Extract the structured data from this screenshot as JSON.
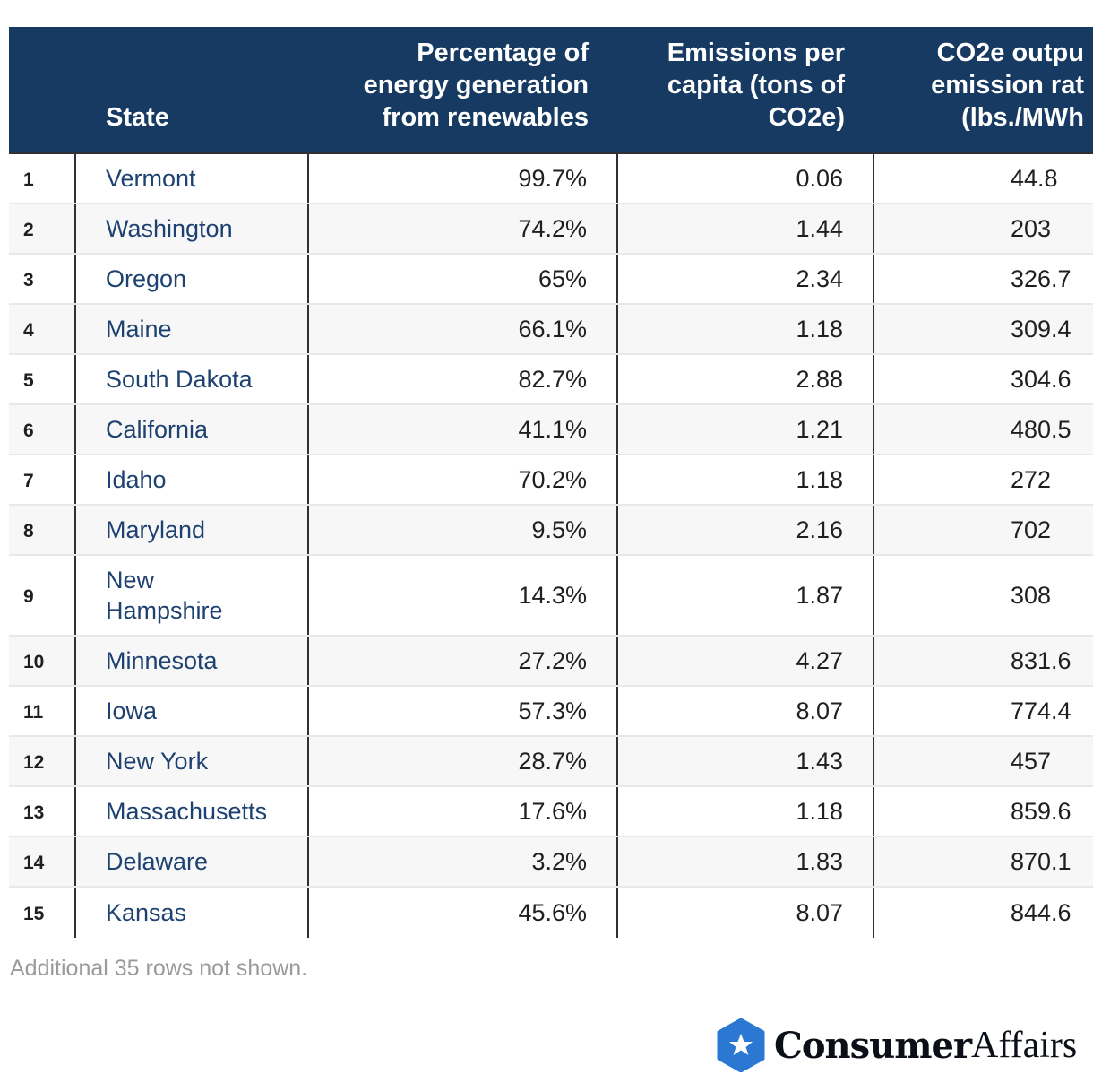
{
  "header": {
    "rank": "",
    "state": "State",
    "pct": [
      "Percentage of",
      "energy generation",
      "from renewables"
    ],
    "emissions": [
      "Emissions per",
      "capita (tons of",
      "CO2e)"
    ],
    "co2e": [
      "CO2e outpu",
      "emission rat",
      "(lbs./MWh"
    ]
  },
  "rows": [
    {
      "rank": "1",
      "state": "Vermont",
      "pct": "99.7%",
      "emissions": "0.06",
      "co2e": "44.8"
    },
    {
      "rank": "2",
      "state": "Washington",
      "pct": "74.2%",
      "emissions": "1.44",
      "co2e": "203"
    },
    {
      "rank": "3",
      "state": "Oregon",
      "pct": "65%",
      "emissions": "2.34",
      "co2e": "326.7"
    },
    {
      "rank": "4",
      "state": "Maine",
      "pct": "66.1%",
      "emissions": "1.18",
      "co2e": "309.4"
    },
    {
      "rank": "5",
      "state": "South Dakota",
      "pct": "82.7%",
      "emissions": "2.88",
      "co2e": "304.6"
    },
    {
      "rank": "6",
      "state": "California",
      "pct": "41.1%",
      "emissions": "1.21",
      "co2e": "480.5"
    },
    {
      "rank": "7",
      "state": "Idaho",
      "pct": "70.2%",
      "emissions": "1.18",
      "co2e": "272"
    },
    {
      "rank": "8",
      "state": "Maryland",
      "pct": "9.5%",
      "emissions": "2.16",
      "co2e": "702"
    },
    {
      "rank": "9",
      "state": "New Hampshire",
      "pct": "14.3%",
      "emissions": "1.87",
      "co2e": "308"
    },
    {
      "rank": "10",
      "state": "Minnesota",
      "pct": "27.2%",
      "emissions": "4.27",
      "co2e": "831.6"
    },
    {
      "rank": "11",
      "state": "Iowa",
      "pct": "57.3%",
      "emissions": "8.07",
      "co2e": "774.4"
    },
    {
      "rank": "12",
      "state": "New York",
      "pct": "28.7%",
      "emissions": "1.43",
      "co2e": "457"
    },
    {
      "rank": "13",
      "state": "Massachusetts",
      "pct": "17.6%",
      "emissions": "1.18",
      "co2e": "859.6"
    },
    {
      "rank": "14",
      "state": "Delaware",
      "pct": "3.2%",
      "emissions": "1.83",
      "co2e": "870.1"
    },
    {
      "rank": "15",
      "state": "Kansas",
      "pct": "45.6%",
      "emissions": "8.07",
      "co2e": "844.6"
    }
  ],
  "note": "Additional 35 rows not shown.",
  "logo": {
    "text_bold": "Consumer",
    "text_light": "Affairs",
    "icon": "star-hexagon-icon",
    "color": "#2a78d2"
  },
  "colors": {
    "header_bg": "#173a63",
    "state_text": "#1d4170",
    "alt_row": "#f7f7f7"
  }
}
